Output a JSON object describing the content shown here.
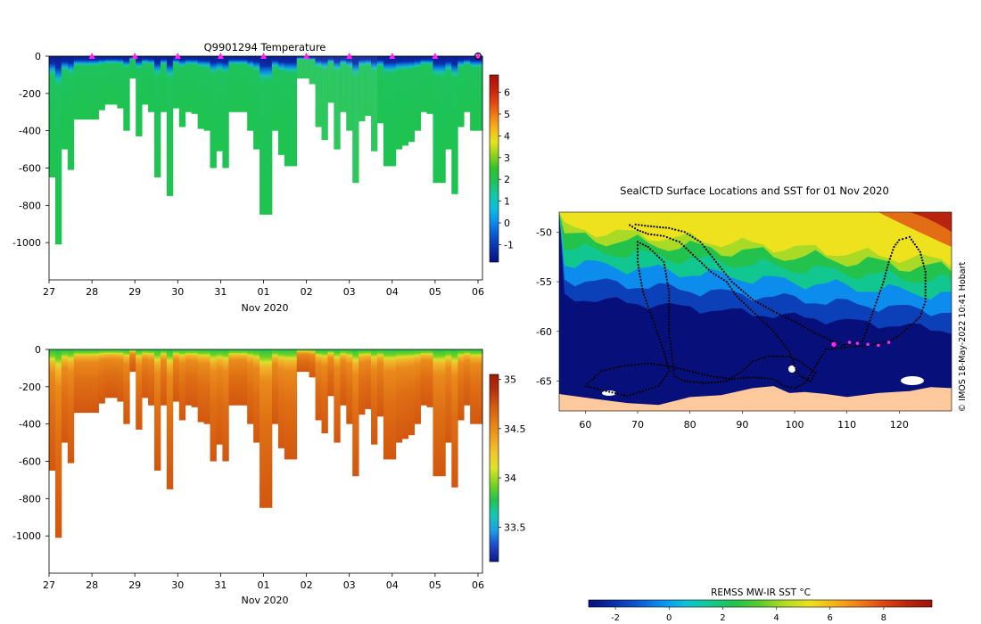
{
  "colors": {
    "temp_scale": [
      "#08107c",
      "#0a2fa6",
      "#0b55cf",
      "#0a8ff0",
      "#0bbfe0",
      "#12c8a8",
      "#1fc35a",
      "#2ec42b",
      "#8fd31c",
      "#e9e41c",
      "#f6b417",
      "#f47a14",
      "#e04410",
      "#c51e0c",
      "#a5120a"
    ],
    "sal_scale": [
      "#101885",
      "#1f47c8",
      "#1b9fe8",
      "#14c8b0",
      "#22c44c",
      "#7fd41f",
      "#dde52a",
      "#f2c52a",
      "#ef9f1f",
      "#e47a15",
      "#d25a10",
      "#b7300c",
      "#a01b0a"
    ],
    "sst_scale": [
      "#07107a",
      "#0b2fa8",
      "#0b58d2",
      "#0c90f0",
      "#0cc4d8",
      "#14c88a",
      "#22c24c",
      "#5bcd2a",
      "#b3dc24",
      "#eae21e",
      "#f6b31a",
      "#f27e18",
      "#dc4a13",
      "#bb260d",
      "#9e120b"
    ],
    "land": "#ffc99e",
    "track": "#000000",
    "marker": "#ff22ff"
  },
  "chart_data": [
    {
      "type": "heatmap",
      "title": "Q9901294  Temperature",
      "xlabel": "Nov 2020",
      "x_ticks": [
        "27",
        "28",
        "29",
        "30",
        "31",
        "01",
        "02",
        "03",
        "04",
        "05",
        "06"
      ],
      "ylim": [
        0,
        -1200
      ],
      "y_ticks": [
        0,
        -200,
        -400,
        -600,
        -800,
        -1000
      ],
      "colorbar": {
        "min": -1.8,
        "max": 6.8,
        "ticks": [
          6,
          5,
          4,
          3,
          2,
          1,
          0,
          -1
        ]
      },
      "profile_max_depth": [
        650,
        1010,
        500,
        610,
        340,
        340,
        340,
        340,
        290,
        260,
        260,
        280,
        400,
        120,
        430,
        260,
        300,
        650,
        300,
        750,
        280,
        380,
        300,
        310,
        390,
        400,
        600,
        510,
        600,
        300,
        300,
        300,
        400,
        500,
        850,
        850,
        400,
        530,
        590,
        590,
        120,
        120,
        150,
        380,
        450,
        250,
        500,
        300,
        400,
        680,
        350,
        320,
        510,
        360,
        590,
        590,
        500,
        480,
        460,
        400,
        300,
        310,
        680,
        680,
        500,
        740,
        380,
        300,
        400,
        400
      ],
      "surface_markers": [
        "27.6",
        "28",
        "29",
        "30",
        "31",
        "01",
        "02",
        "03",
        "04",
        "05",
        "06"
      ]
    },
    {
      "type": "heatmap",
      "title": "",
      "xlabel": "Nov 2020",
      "x_ticks": [
        "27",
        "28",
        "29",
        "30",
        "31",
        "01",
        "02",
        "03",
        "04",
        "05",
        "06"
      ],
      "ylim": [
        0,
        -1200
      ],
      "y_ticks": [
        0,
        -200,
        -400,
        -600,
        -800,
        -1000
      ],
      "colorbar": {
        "min": 33.15,
        "max": 35.05,
        "ticks": [
          35,
          34.5,
          34,
          33.5
        ]
      }
    },
    {
      "type": "scatter",
      "title": "SealCTD Surface Locations and SST for 01 Nov 2020",
      "xlim": [
        55,
        130
      ],
      "ylim": [
        -68,
        -48
      ],
      "x_ticks": [
        60,
        70,
        80,
        90,
        100,
        110,
        120
      ],
      "y_ticks": [
        -50,
        -55,
        -60,
        -65
      ],
      "track_points": [
        [
          68.5,
          -49.3
        ],
        [
          70,
          -49.8
        ],
        [
          72,
          -50.2
        ],
        [
          75,
          -50.4
        ],
        [
          78,
          -51
        ],
        [
          81,
          -52.5
        ],
        [
          84,
          -54
        ],
        [
          87,
          -55
        ],
        [
          89,
          -56.5
        ],
        [
          92,
          -58
        ],
        [
          96,
          -60
        ],
        [
          99,
          -62
        ],
        [
          100,
          -63.5
        ],
        [
          101,
          -64.5
        ],
        [
          103,
          -65
        ],
        [
          104,
          -64.2
        ],
        [
          101,
          -63
        ],
        [
          99,
          -62.5
        ],
        [
          95,
          -62.5
        ],
        [
          92,
          -63
        ],
        [
          90,
          -64
        ],
        [
          87,
          -65
        ],
        [
          83,
          -65.2
        ],
        [
          79,
          -65
        ],
        [
          77,
          -64.5
        ],
        [
          76,
          -60
        ],
        [
          76,
          -56
        ],
        [
          75,
          -53
        ],
        [
          72,
          -51.5
        ],
        [
          70,
          -51
        ],
        [
          70,
          -53
        ],
        [
          71,
          -56
        ],
        [
          73,
          -59
        ],
        [
          75,
          -62
        ],
        [
          76,
          -64
        ],
        [
          74,
          -65.5
        ],
        [
          71,
          -66
        ],
        [
          68,
          -66.5
        ],
        [
          64,
          -66
        ],
        [
          60,
          -65.5
        ],
        [
          63,
          -64
        ],
        [
          67,
          -63.5
        ],
        [
          72,
          -63.2
        ],
        [
          76,
          -63.5
        ],
        [
          80,
          -64
        ],
        [
          84,
          -64.5
        ],
        [
          88,
          -64.8
        ],
        [
          92,
          -64.6
        ],
        [
          96,
          -64.8
        ],
        [
          98,
          -65.5
        ],
        [
          100,
          -65.7
        ],
        [
          102,
          -65.2
        ],
        [
          106,
          -61.8
        ],
        [
          110,
          -61.6
        ],
        [
          114,
          -61.4
        ],
        [
          118,
          -61
        ],
        [
          120,
          -60.4
        ],
        [
          122,
          -59.5
        ],
        [
          124,
          -58.5
        ],
        [
          125,
          -57
        ],
        [
          125,
          -54
        ],
        [
          124,
          -52
        ],
        [
          122,
          -50.5
        ],
        [
          120,
          -50.8
        ],
        [
          119,
          -51.5
        ],
        [
          118,
          -53
        ],
        [
          117,
          -55
        ],
        [
          116,
          -56.5
        ],
        [
          115,
          -58
        ],
        [
          114,
          -59.5
        ],
        [
          113,
          -61
        ],
        [
          109,
          -61.4
        ],
        [
          104,
          -60.2
        ],
        [
          100,
          -59
        ],
        [
          96,
          -58
        ],
        [
          92,
          -56.8
        ],
        [
          88,
          -55
        ],
        [
          85,
          -53
        ],
        [
          82,
          -51
        ],
        [
          79,
          -50
        ],
        [
          76,
          -49.6
        ],
        [
          72,
          -49.4
        ],
        [
          69,
          -49.2
        ]
      ],
      "highlight_points": [
        [
          107.5,
          -61.3
        ],
        [
          110.5,
          -61.1
        ],
        [
          112,
          -61.2
        ],
        [
          114,
          -61.3
        ],
        [
          116,
          -61.4
        ],
        [
          118,
          -61.1
        ]
      ],
      "colorbar": {
        "label": "REMSS MW-IR SST °C",
        "min": -3,
        "max": 9.8,
        "ticks": [
          -2,
          0,
          2,
          4,
          6,
          8
        ]
      },
      "credit": "© IMOS 18-May-2022 10:41 Hobart"
    }
  ]
}
